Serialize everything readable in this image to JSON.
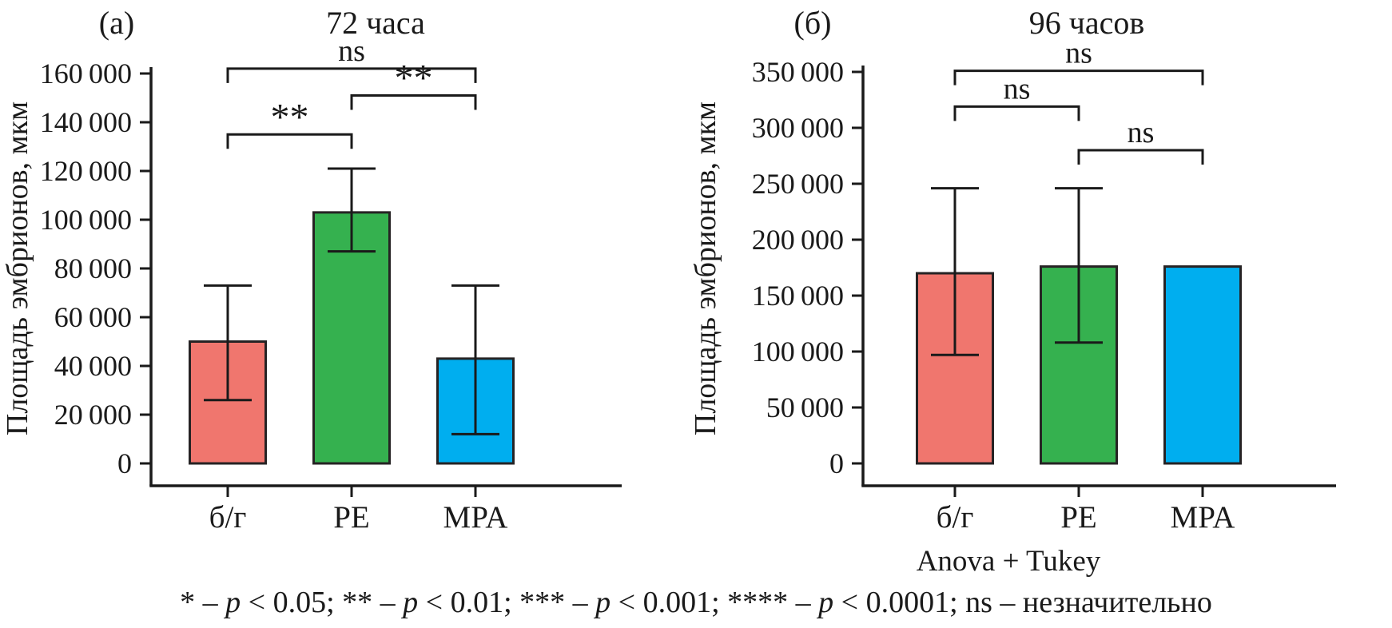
{
  "figure": {
    "caption": "* – p < 0.05; ** – p < 0.01; *** – p < 0.001; **** – p < 0.0001; ns – незначительно",
    "colors": {
      "text": "#1a1a1a",
      "axis": "#1a1a1a",
      "bar_stroke": "#262324"
    }
  },
  "chart_data": [
    {
      "type": "bar",
      "panel": "(а)",
      "title": "72 часа",
      "ylabel": "Площадь эмбрионов, мкм",
      "categories": [
        "б/г",
        "PE",
        "MPA"
      ],
      "values": [
        50000,
        103000,
        43000
      ],
      "error_low": [
        26000,
        87000,
        12000
      ],
      "error_high": [
        73000,
        121000,
        73000
      ],
      "bar_colors": [
        "#F0766E",
        "#35B14F",
        "#00AEEF"
      ],
      "ylim": [
        0,
        160000
      ],
      "yticks": [
        0,
        20000,
        40000,
        60000,
        80000,
        100000,
        120000,
        140000,
        160000
      ],
      "grid": false,
      "legend": false,
      "brackets": [
        {
          "from": 0,
          "to": 1,
          "label": "**",
          "y": 135000
        },
        {
          "from": 1,
          "to": 2,
          "label": "**",
          "y": 151000
        },
        {
          "from": 0,
          "to": 2,
          "label": "ns",
          "y": 162000
        }
      ]
    },
    {
      "type": "bar",
      "panel": "(б)",
      "title": "96 часов",
      "ylabel": "Площадь эмбрионов, мкм",
      "categories": [
        "б/г",
        "PE",
        "MPA"
      ],
      "values": [
        170000,
        176000,
        176000
      ],
      "error_low": [
        97000,
        108000,
        null
      ],
      "error_high": [
        246000,
        246000,
        null
      ],
      "bar_colors": [
        "#F0766E",
        "#35B14F",
        "#00AEEF"
      ],
      "ylim": [
        0,
        350000
      ],
      "yticks": [
        0,
        50000,
        100000,
        150000,
        200000,
        250000,
        300000,
        350000
      ],
      "grid": false,
      "legend": false,
      "note": "Anova + Tukey",
      "brackets": [
        {
          "from": 0,
          "to": 1,
          "label": "ns",
          "y": 319000
        },
        {
          "from": 1,
          "to": 2,
          "label": "ns",
          "y": 280000
        },
        {
          "from": 0,
          "to": 2,
          "label": "ns",
          "y": 351000
        }
      ]
    }
  ]
}
